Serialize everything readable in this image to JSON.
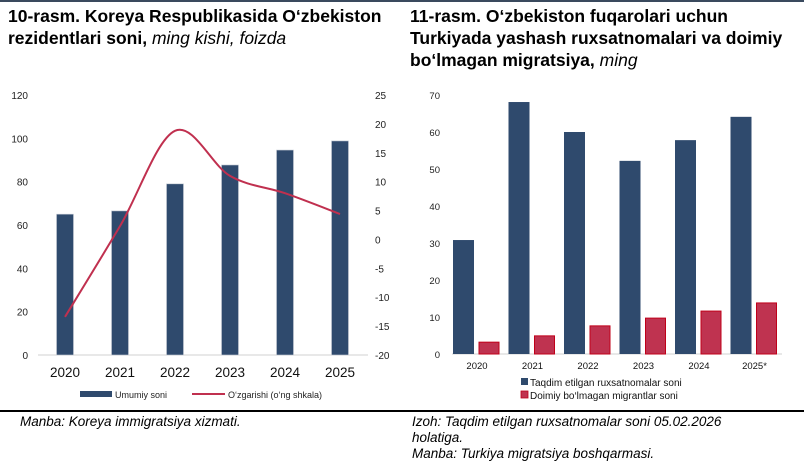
{
  "left_title": {
    "bold": "10-rasm. Koreya Respublikasida O‘zbekiston rezidentlari soni,",
    "italic": "ming kishi, foizda"
  },
  "right_title": {
    "bold": "11-rasm. O‘zbekiston fuqarolari uchun Turkiyada yashash ruxsatnomalari va doimiy bo‘lmagan migratsiya,",
    "italic": "ming"
  },
  "footer": {
    "left_source": "Manba: Koreya immigratsiya xizmati.",
    "right_note": "Izoh: Taqdim etilgan ruxsatnomalar soni 05.02.2026 holatiga.",
    "right_source": "Manba: Turkiya migratsiya boshqarmasi."
  },
  "chart_data": [
    {
      "type": "bar+line",
      "categories": [
        "2020",
        "2021",
        "2022",
        "2023",
        "2024",
        "2025"
      ],
      "series": [
        {
          "name": "Umumiy soni",
          "type": "bar",
          "axis": "left",
          "color": "#2f4a6d",
          "values": [
            65,
            66.5,
            79,
            87.7,
            94.6,
            98.8
          ]
        },
        {
          "name": "O‘zgarishi (o‘ng shkala)",
          "type": "line",
          "axis": "right",
          "color": "#c0304f",
          "values": [
            -13.4,
            2.3,
            18.8,
            11,
            8,
            4.4
          ]
        }
      ],
      "ylim": [
        0,
        120
      ],
      "yticks": [
        "0",
        "20",
        "40",
        "60",
        "80",
        "100",
        "120"
      ],
      "y2lim": [
        -20,
        25
      ],
      "y2ticks": [
        "-20",
        "-15",
        "-10",
        "-5",
        "0",
        "5",
        "10",
        "15",
        "20",
        "25"
      ],
      "legend": "bottom"
    },
    {
      "type": "bar",
      "categories": [
        "2020",
        "2021",
        "2022",
        "2023",
        "2024",
        "2025*"
      ],
      "series": [
        {
          "name": "Taqdim etilgan ruxsatnomalar soni",
          "color": "#2f4a6d",
          "values": [
            30.8,
            68.1,
            60,
            52.2,
            57.8,
            64.1
          ]
        },
        {
          "name": "Doimiy bo‘lmagan migrantlar soni",
          "color": "#bf3350",
          "values": [
            3.2,
            4.9,
            7.6,
            9.7,
            11.6,
            13.8
          ]
        }
      ],
      "ylim": [
        0,
        70
      ],
      "yticks": [
        "0",
        "10",
        "20",
        "30",
        "40",
        "50",
        "60",
        "70"
      ],
      "legend": "bottom"
    }
  ]
}
